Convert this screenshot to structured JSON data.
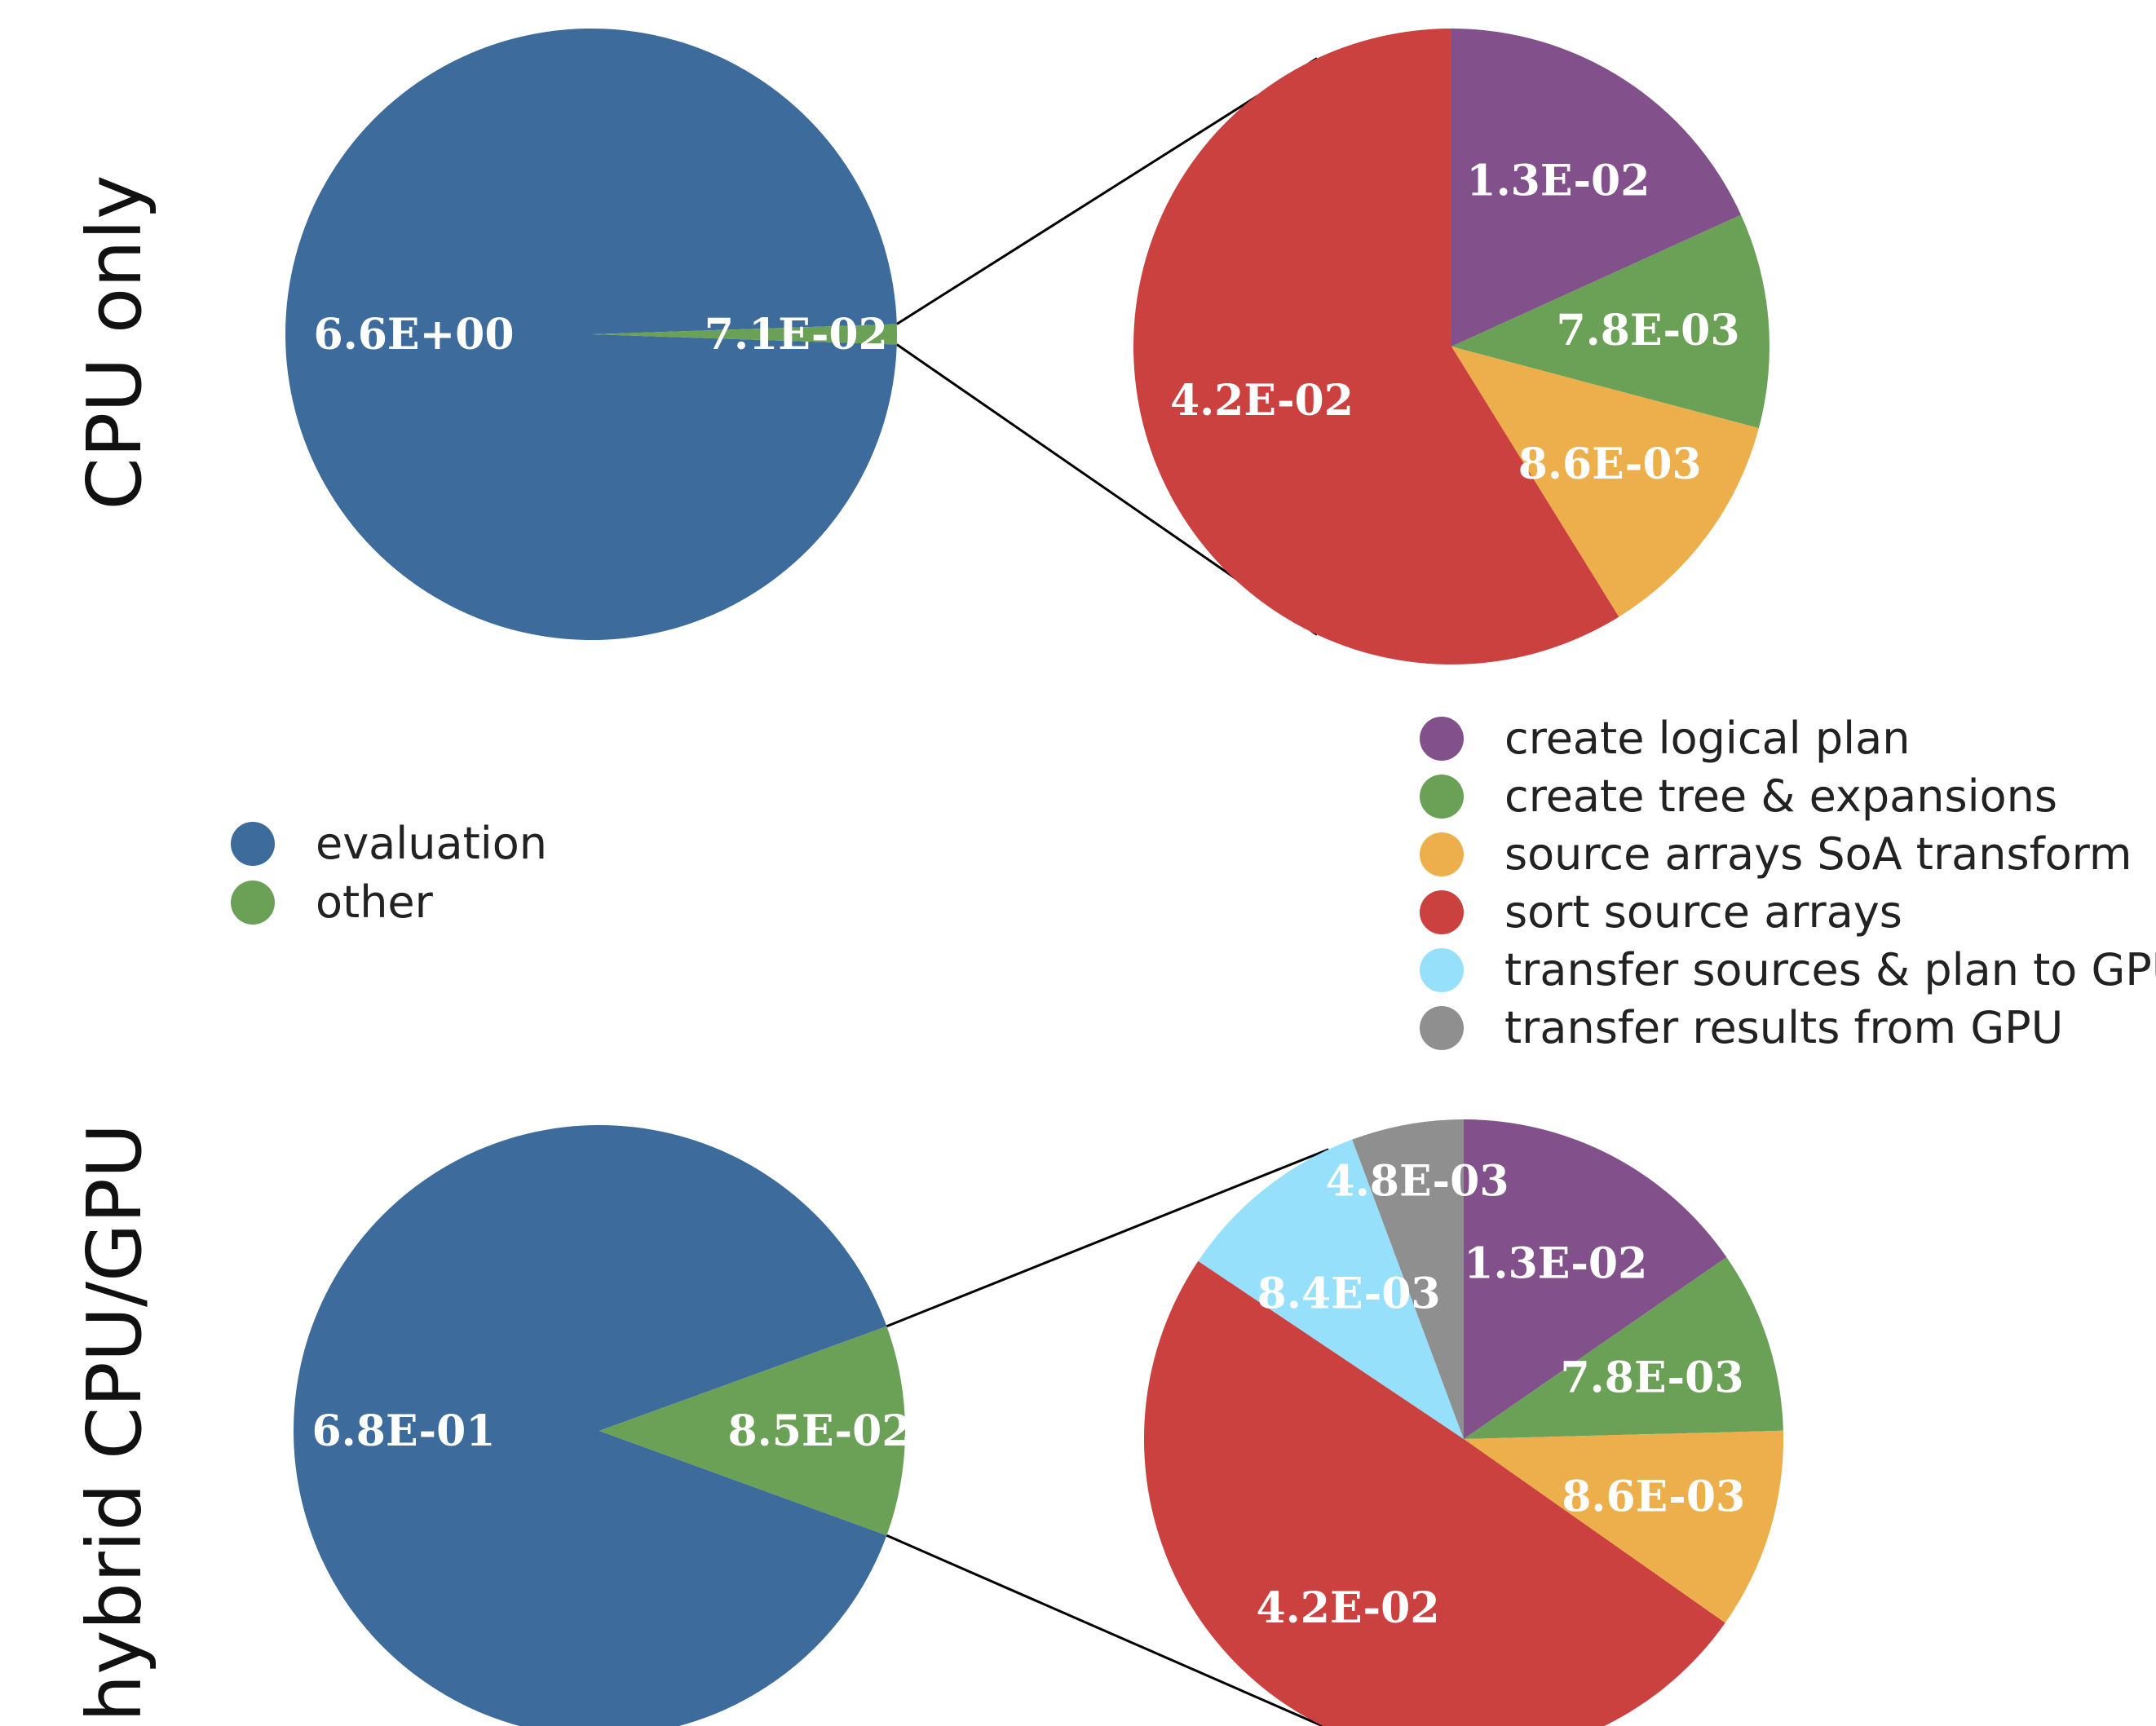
{
  "row_titles": [
    "CPU only",
    "hybrid CPU/GPU"
  ],
  "colors": {
    "evaluation": "#3C6B9C",
    "other": "#6AA157",
    "create logical plan": "#82518C",
    "create tree & expansions": "#6AA157",
    "source arrays SoA transform": "#ECAF4C",
    "sort source arrays": "#CB4140",
    "transfer sources & plan to GPU": "#97E0FB",
    "transfer results from GPU": "#8F8F8F"
  },
  "legend_main": [
    "evaluation",
    "other"
  ],
  "legend_detail": [
    "create logical plan",
    "create tree & expansions",
    "source arrays SoA transform",
    "sort source arrays",
    "transfer sources & plan to GPU",
    "transfer results from GPU"
  ],
  "chart_data": [
    {
      "type": "pie",
      "title": "CPU only",
      "categories": [
        "evaluation",
        "other"
      ],
      "values": [
        6.6,
        0.071
      ],
      "labels": [
        "6.6E+00",
        "7.1E-02"
      ]
    },
    {
      "type": "pie",
      "title": "CPU only",
      "categories": [
        "create logical plan",
        "create tree & expansions",
        "source arrays SoA transform",
        "sort source arrays"
      ],
      "values": [
        0.013,
        0.0078,
        0.0086,
        0.042
      ],
      "labels": [
        "1.3E-02",
        "7.8E-03",
        "8.6E-03",
        "4.2E-02"
      ]
    },
    {
      "type": "pie",
      "title": "hybrid CPU/GPU",
      "categories": [
        "evaluation",
        "other"
      ],
      "values": [
        0.68,
        0.085
      ],
      "labels": [
        "6.8E-01",
        "8.5E-02"
      ]
    },
    {
      "type": "pie",
      "title": "hybrid CPU/GPU",
      "categories": [
        "create logical plan",
        "create tree & expansions",
        "source arrays SoA transform",
        "sort source arrays",
        "transfer sources & plan to GPU",
        "transfer results from GPU"
      ],
      "values": [
        0.013,
        0.0078,
        0.0086,
        0.042,
        0.0084,
        0.0048
      ],
      "labels": [
        "1.3E-02",
        "7.8E-03",
        "8.6E-03",
        "4.2E-02",
        "8.4E-03",
        "4.8E-03"
      ]
    }
  ]
}
